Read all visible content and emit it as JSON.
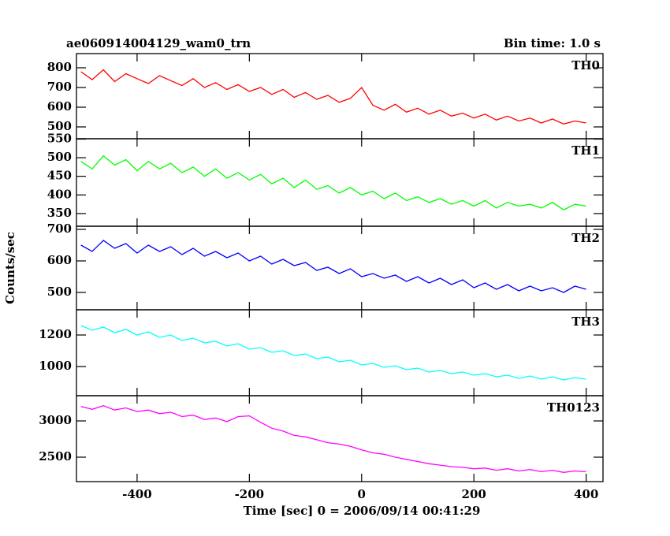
{
  "chart_data": [
    {
      "type": "line",
      "title": "ae060914004129_wam0_trn",
      "annotation": "Bin time: 1.0 s",
      "name": "TH0",
      "color": "#ff0000",
      "x": [
        -500,
        -480,
        -460,
        -440,
        -420,
        -400,
        -380,
        -360,
        -340,
        -320,
        -300,
        -280,
        -260,
        -240,
        -220,
        -200,
        -180,
        -160,
        -140,
        -120,
        -100,
        -80,
        -60,
        -40,
        -20,
        0,
        20,
        40,
        60,
        80,
        100,
        120,
        140,
        160,
        180,
        200,
        220,
        240,
        260,
        280,
        300,
        320,
        340,
        360,
        380,
        400
      ],
      "values": [
        780,
        740,
        790,
        730,
        770,
        745,
        720,
        760,
        735,
        710,
        745,
        700,
        725,
        690,
        715,
        680,
        700,
        665,
        690,
        650,
        675,
        640,
        660,
        625,
        645,
        700,
        610,
        585,
        615,
        575,
        595,
        565,
        585,
        555,
        570,
        545,
        565,
        535,
        555,
        530,
        545,
        520,
        540,
        515,
        530,
        520
      ],
      "xlim": [
        -508,
        430
      ],
      "ylim": [
        440,
        872
      ],
      "yticks": [
        500,
        600,
        700,
        800
      ]
    },
    {
      "type": "line",
      "name": "TH1",
      "color": "#00ff00",
      "x": [
        -500,
        -480,
        -460,
        -440,
        -420,
        -400,
        -380,
        -360,
        -340,
        -320,
        -300,
        -280,
        -260,
        -240,
        -220,
        -200,
        -180,
        -160,
        -140,
        -120,
        -100,
        -80,
        -60,
        -40,
        -20,
        0,
        20,
        40,
        60,
        80,
        100,
        120,
        140,
        160,
        180,
        200,
        220,
        240,
        260,
        280,
        300,
        320,
        340,
        360,
        380,
        400
      ],
      "values": [
        490,
        470,
        505,
        480,
        495,
        465,
        490,
        470,
        485,
        460,
        475,
        450,
        470,
        445,
        460,
        440,
        455,
        430,
        445,
        420,
        440,
        415,
        425,
        405,
        420,
        400,
        410,
        390,
        405,
        385,
        395,
        380,
        390,
        375,
        385,
        370,
        385,
        365,
        380,
        370,
        375,
        365,
        380,
        360,
        375,
        370
      ],
      "xlim": [
        -508,
        430
      ],
      "ylim": [
        316,
        551
      ],
      "yticks": [
        350,
        400,
        450,
        500,
        550
      ]
    },
    {
      "type": "line",
      "name": "TH2",
      "color": "#0000ff",
      "ylabel": "Counts/sec",
      "x": [
        -500,
        -480,
        -460,
        -440,
        -420,
        -400,
        -380,
        -360,
        -340,
        -320,
        -300,
        -280,
        -260,
        -240,
        -220,
        -200,
        -180,
        -160,
        -140,
        -120,
        -100,
        -80,
        -60,
        -40,
        -20,
        0,
        20,
        40,
        60,
        80,
        100,
        120,
        140,
        160,
        180,
        200,
        220,
        240,
        260,
        280,
        300,
        320,
        340,
        360,
        380,
        400
      ],
      "values": [
        650,
        630,
        665,
        640,
        655,
        625,
        650,
        630,
        645,
        620,
        640,
        615,
        630,
        610,
        625,
        600,
        615,
        590,
        605,
        585,
        595,
        570,
        580,
        560,
        575,
        550,
        560,
        545,
        555,
        535,
        550,
        530,
        545,
        525,
        540,
        515,
        530,
        510,
        525,
        505,
        520,
        505,
        515,
        500,
        520,
        510
      ],
      "xlim": [
        -508,
        430
      ],
      "ylim": [
        445,
        710
      ],
      "yticks": [
        500,
        600,
        700
      ]
    },
    {
      "type": "line",
      "name": "TH3",
      "color": "#00ffff",
      "x": [
        -500,
        -480,
        -460,
        -440,
        -420,
        -400,
        -380,
        -360,
        -340,
        -320,
        -300,
        -280,
        -260,
        -240,
        -220,
        -200,
        -180,
        -160,
        -140,
        -120,
        -100,
        -80,
        -60,
        -40,
        -20,
        0,
        20,
        40,
        60,
        80,
        100,
        120,
        140,
        160,
        180,
        200,
        220,
        240,
        260,
        280,
        300,
        320,
        340,
        360,
        380,
        400
      ],
      "values": [
        1260,
        1230,
        1250,
        1215,
        1235,
        1200,
        1220,
        1185,
        1200,
        1165,
        1180,
        1150,
        1160,
        1130,
        1145,
        1110,
        1120,
        1090,
        1100,
        1070,
        1080,
        1050,
        1060,
        1030,
        1040,
        1010,
        1020,
        995,
        1005,
        980,
        990,
        965,
        975,
        955,
        965,
        945,
        955,
        935,
        945,
        925,
        940,
        920,
        935,
        915,
        930,
        920
      ],
      "xlim": [
        -508,
        430
      ],
      "ylim": [
        815,
        1360
      ],
      "yticks": [
        1000,
        1200
      ]
    },
    {
      "type": "line",
      "name": "TH0123",
      "color": "#ff00ff",
      "xlabel": "Time [sec] 0 = 2006/09/14 00:41:29",
      "x": [
        -500,
        -480,
        -460,
        -440,
        -420,
        -400,
        -380,
        -360,
        -340,
        -320,
        -300,
        -280,
        -260,
        -240,
        -220,
        -200,
        -180,
        -160,
        -140,
        -120,
        -100,
        -80,
        -60,
        -40,
        -20,
        0,
        20,
        40,
        60,
        80,
        100,
        120,
        140,
        160,
        180,
        200,
        220,
        240,
        260,
        280,
        300,
        320,
        340,
        360,
        380,
        400
      ],
      "values": [
        3200,
        3160,
        3210,
        3150,
        3180,
        3130,
        3150,
        3100,
        3120,
        3060,
        3080,
        3020,
        3040,
        2990,
        3060,
        3070,
        2980,
        2900,
        2860,
        2800,
        2780,
        2740,
        2700,
        2680,
        2650,
        2600,
        2560,
        2540,
        2500,
        2470,
        2440,
        2410,
        2390,
        2370,
        2360,
        2340,
        2350,
        2320,
        2340,
        2310,
        2330,
        2300,
        2320,
        2290,
        2310,
        2300
      ],
      "xlim": [
        -508,
        430
      ],
      "ylim": [
        2163,
        3348
      ],
      "yticks": [
        2500,
        3000
      ],
      "xticks": [
        -400,
        -200,
        0,
        200,
        400
      ]
    }
  ]
}
